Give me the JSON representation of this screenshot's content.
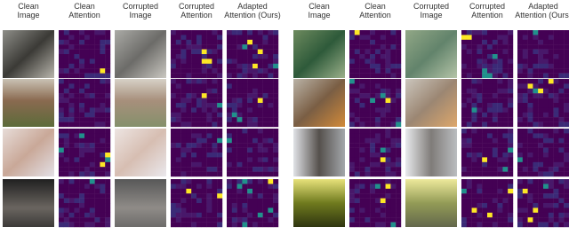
{
  "panels": [
    {
      "columns": [
        [
          "Clean",
          "Image"
        ],
        [
          "Clean",
          "Attention"
        ],
        [
          "Corrupted",
          "Image"
        ],
        [
          "Corrupted",
          "Attention"
        ],
        [
          "Adapted",
          "Attention (Ours)"
        ]
      ]
    },
    {
      "columns": [
        [
          "Clean",
          "Image"
        ],
        [
          "Clean",
          "Attention"
        ],
        [
          "Corrupted",
          "Image"
        ],
        [
          "Corrupted",
          "Attention"
        ],
        [
          "Adapted",
          "Attention (Ours)"
        ]
      ]
    }
  ]
}
